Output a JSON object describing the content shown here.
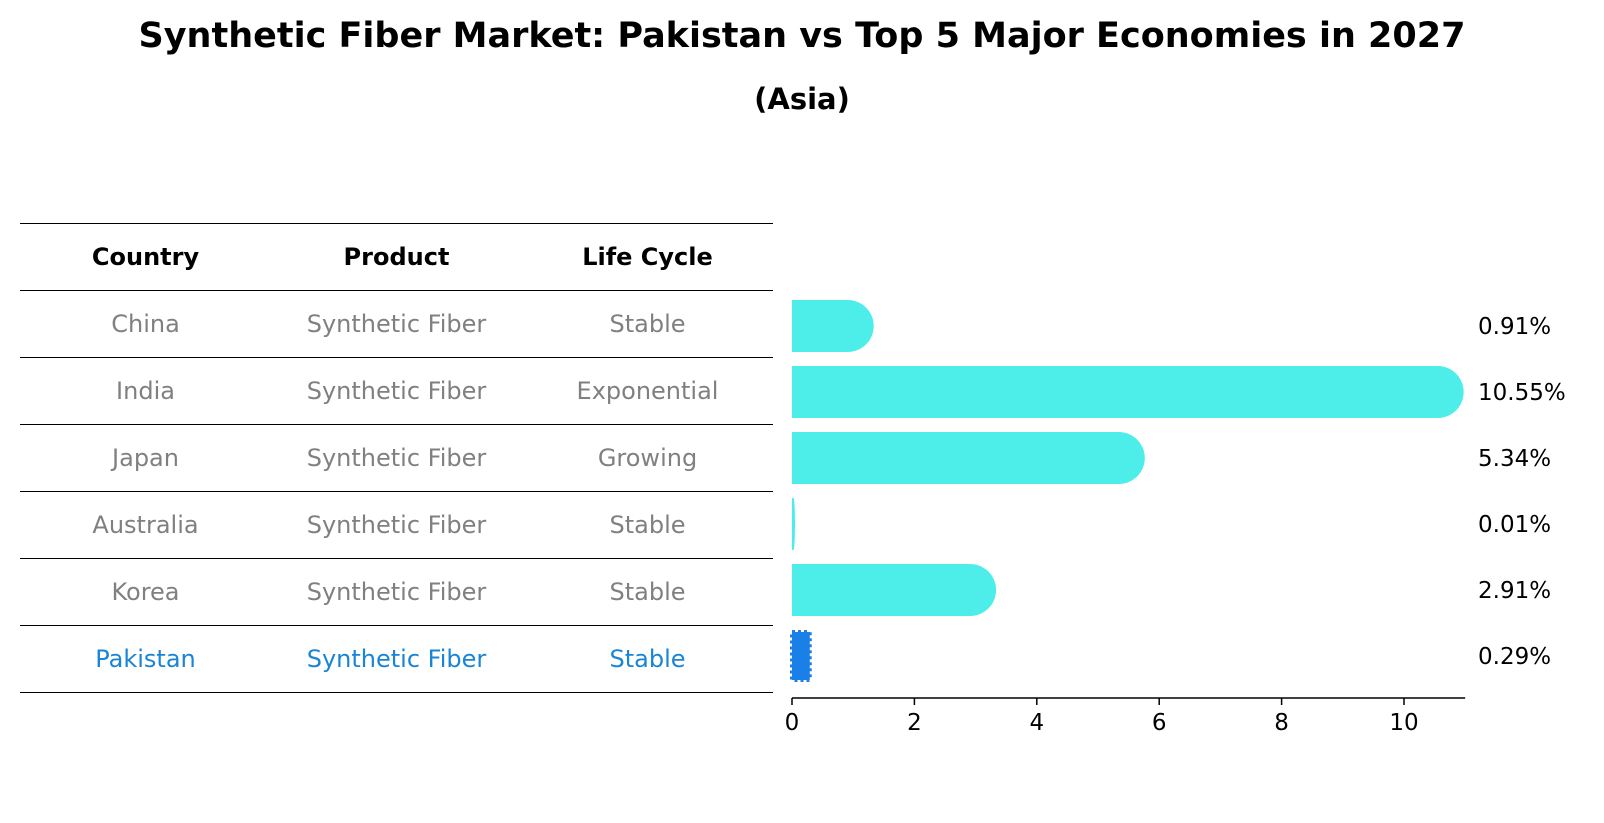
{
  "title": "Synthetic Fiber Market: Pakistan vs Top 5 Major Economies in 2027",
  "subtitle": "(Asia)",
  "table": {
    "headers": [
      "Country",
      "Product",
      "Life Cycle"
    ],
    "rows": [
      [
        "China",
        "Synthetic Fiber",
        "Stable"
      ],
      [
        "India",
        "Synthetic Fiber",
        "Exponential"
      ],
      [
        "Japan",
        "Synthetic Fiber",
        "Growing"
      ],
      [
        "Australia",
        "Synthetic Fiber",
        "Stable"
      ],
      [
        "Korea",
        "Synthetic Fiber",
        "Stable"
      ],
      [
        "Pakistan",
        "Synthetic Fiber",
        "Stable"
      ]
    ]
  },
  "chart_data": {
    "type": "bar",
    "orientation": "horizontal",
    "categories": [
      "China",
      "India",
      "Japan",
      "Australia",
      "Korea",
      "Pakistan"
    ],
    "values": [
      0.91,
      10.55,
      5.34,
      0.01,
      2.91,
      0.29
    ],
    "value_labels": [
      "0.91%",
      "10.55%",
      "5.34%",
      "0.01%",
      "2.91%",
      "0.29%"
    ],
    "highlight": "Pakistan",
    "xlim": [
      0,
      11
    ],
    "xticks": [
      0,
      2,
      4,
      6,
      8,
      10
    ],
    "xlabel": "",
    "ylabel": "",
    "colors": {
      "bar": "#4deee9",
      "highlight": "#1a7fe6"
    }
  }
}
